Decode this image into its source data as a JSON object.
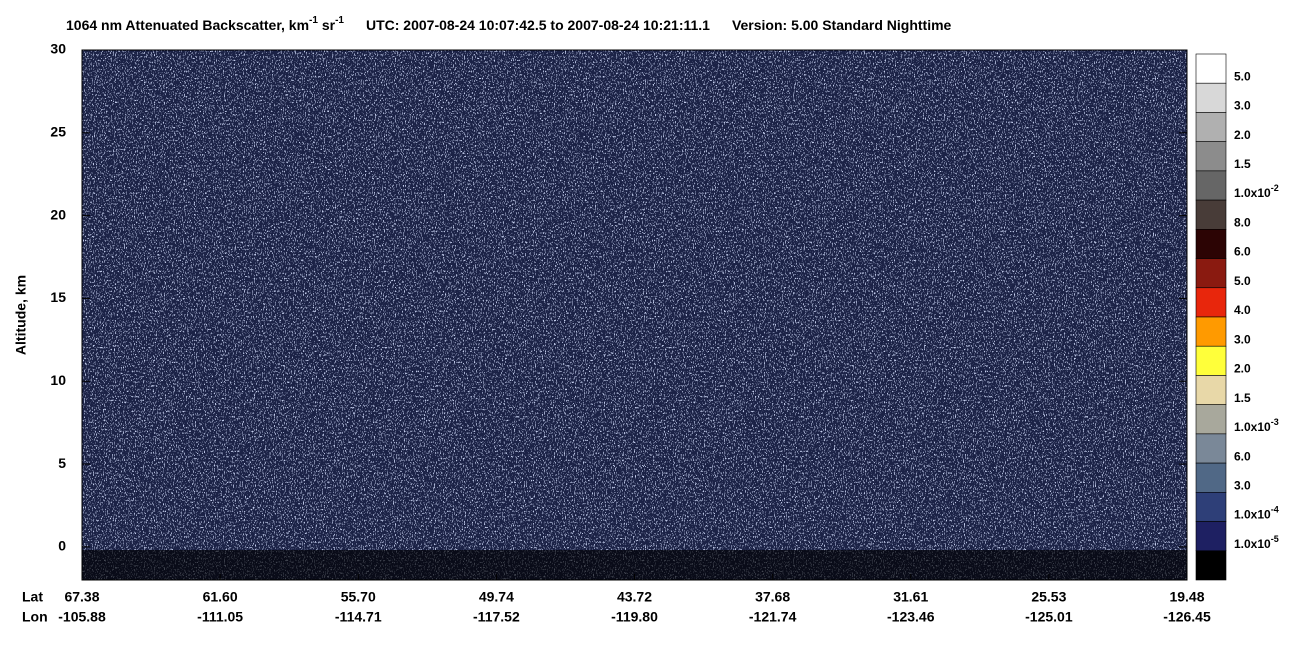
{
  "chart_data": {
    "type": "heatmap",
    "title_parts": [
      "1064 nm Attenuated Backscatter, km",
      "-1",
      " sr",
      "-1",
      "UTC:  2007-08-24 10:07:42.5  to  2007-08-24 10:21:11.1",
      "Version: 5.00  Standard  Nighttime"
    ],
    "y_label": "Altitude, km",
    "ylim": [
      -2,
      30
    ],
    "yticks": [
      0,
      5,
      10,
      15,
      20,
      25,
      30
    ],
    "x_rows": [
      {
        "name": "Lat",
        "labels": [
          "67.38",
          "61.60",
          "55.70",
          "49.74",
          "43.72",
          "37.68",
          "31.61",
          "25.53",
          "19.48"
        ]
      },
      {
        "name": "Lon",
        "labels": [
          "-105.88",
          "-111.05",
          "-114.71",
          "-117.52",
          "-119.80",
          "-121.74",
          "-123.46",
          "-125.01",
          "-126.45"
        ]
      }
    ],
    "colorbar": {
      "colors": [
        "#ffffff",
        "#d8d8d8",
        "#b0b0b0",
        "#8c8c8c",
        "#666666",
        "#483c38",
        "#2c0404",
        "#8a1a10",
        "#e8260c",
        "#ff9a00",
        "#ffff3a",
        "#e8d8a8",
        "#a8a89c",
        "#7a8898",
        "#506886",
        "#2e3f78",
        "#1e2062",
        "#000000"
      ],
      "labels": [
        "5.0",
        "3.0",
        "2.0",
        "1.5",
        {
          "base": "1.0x10",
          "exp": "-2"
        },
        "8.0",
        "6.0",
        "5.0",
        "4.0",
        "3.0",
        "2.0",
        "1.5",
        {
          "base": "1.0x10",
          "exp": "-3"
        },
        "6.0",
        "3.0",
        {
          "base": "1.0x10",
          "exp": "-4"
        },
        {
          "base": "1.0x10",
          "exp": "-5"
        }
      ]
    }
  }
}
